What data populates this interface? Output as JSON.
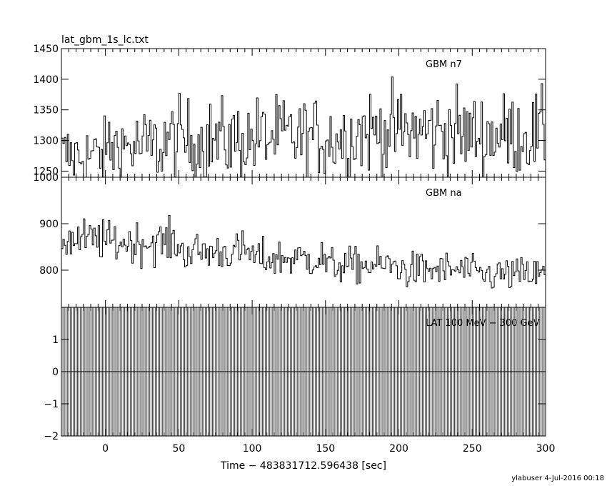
{
  "page": {
    "title": "lat_gbm_1s_lc.txt",
    "footer": "ylabuser  4-Jul-2016 00:18"
  },
  "colors": {
    "background": "#ffffff",
    "ink": "#000000"
  },
  "chart_data": [
    {
      "type": "line",
      "name": "GBM n7",
      "label": "GBM n7",
      "xlim": [
        -30,
        300
      ],
      "ylim": [
        1240,
        1450
      ],
      "yticks": [
        1250,
        1300,
        1350,
        1400,
        1450
      ],
      "ytick_labels": [
        "1250",
        "1300",
        "1350",
        "1400",
        "1450"
      ],
      "x_start": -30,
      "x_step": 1,
      "grid": false,
      "series": [
        {
          "name": "GBM n7",
          "sections": [
            {
              "from": -30,
              "to": 0,
              "mean": 1275,
              "spread": 38
            },
            {
              "from": 0,
              "to": 40,
              "mean": 1290,
              "spread": 42
            },
            {
              "from": 40,
              "to": 100,
              "mean": 1300,
              "spread": 45
            },
            {
              "from": 100,
              "to": 170,
              "mean": 1305,
              "spread": 45
            },
            {
              "from": 170,
              "to": 240,
              "mean": 1315,
              "spread": 48
            },
            {
              "from": 240,
              "to": 300,
              "mean": 1310,
              "spread": 45
            }
          ]
        }
      ]
    },
    {
      "type": "line",
      "name": "GBM na",
      "label": "GBM na",
      "xlim": [
        -30,
        300
      ],
      "ylim": [
        720,
        1000
      ],
      "yticks": [
        800,
        900,
        1000
      ],
      "ytick_labels": [
        "800",
        "900",
        "1000"
      ],
      "x_start": -30,
      "x_step": 1,
      "grid": false,
      "series": [
        {
          "name": "GBM na",
          "sections": [
            {
              "from": -30,
              "to": 0,
              "mean": 865,
              "spread": 30
            },
            {
              "from": 0,
              "to": 50,
              "mean": 860,
              "spread": 30
            },
            {
              "from": 50,
              "to": 100,
              "mean": 840,
              "spread": 28
            },
            {
              "from": 100,
              "to": 150,
              "mean": 825,
              "spread": 28
            },
            {
              "from": 150,
              "to": 200,
              "mean": 810,
              "spread": 26
            },
            {
              "from": 200,
              "to": 250,
              "mean": 800,
              "spread": 26
            },
            {
              "from": 250,
              "to": 300,
              "mean": 790,
              "spread": 25
            }
          ]
        }
      ]
    },
    {
      "type": "line",
      "name": "LAT 100 MeV - 300 GeV",
      "label": "LAT 100 MeV − 300 GeV",
      "xlim": [
        -30,
        300
      ],
      "ylim": [
        -2,
        2
      ],
      "yticks": [
        -2,
        -1,
        0,
        1
      ],
      "ytick_labels": [
        "−2",
        "−1",
        "0",
        "1"
      ],
      "x_start": -30,
      "x_step": 1,
      "grid": false,
      "series": [
        {
          "name": "LAT",
          "constant": 0
        }
      ],
      "xticks": [
        0,
        50,
        100,
        150,
        200,
        250,
        300
      ],
      "xtick_labels": [
        "0",
        "50",
        "100",
        "150",
        "200",
        "250",
        "300"
      ],
      "xlabel": "Time − 483831712.596438 [sec]"
    }
  ]
}
